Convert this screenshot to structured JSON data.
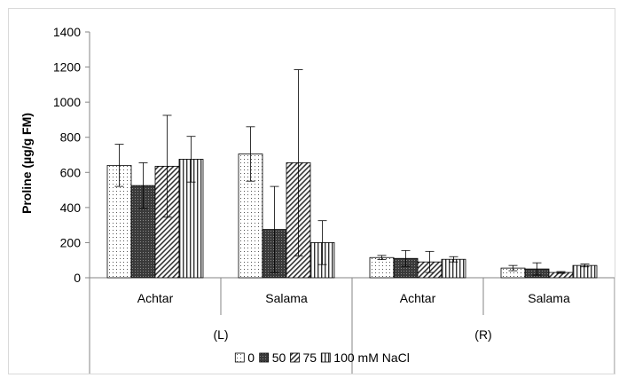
{
  "chart_data": {
    "type": "bar",
    "ylabel": "Proline (µg/g FM)",
    "xlabel": "",
    "ylim": [
      0,
      1400
    ],
    "yticks": [
      0,
      200,
      400,
      600,
      800,
      1000,
      1200,
      1400
    ],
    "grid": false,
    "legend_position": "bottom",
    "groups": [
      "(L)",
      "(R)"
    ],
    "categories": [
      "Achtar",
      "Salama",
      "Achtar",
      "Salama"
    ],
    "category_groups": [
      0,
      0,
      1,
      1
    ],
    "series": [
      {
        "name": "0",
        "values": [
          640,
          705,
          115,
          55
        ],
        "errors": [
          120,
          155,
          12,
          15
        ],
        "pattern": "dots"
      },
      {
        "name": "50",
        "values": [
          525,
          275,
          110,
          50
        ],
        "errors": [
          130,
          245,
          45,
          35
        ],
        "pattern": "dark"
      },
      {
        "name": "75",
        "values": [
          635,
          655,
          90,
          30
        ],
        "errors": [
          290,
          530,
          60,
          5
        ],
        "pattern": "diagonal"
      },
      {
        "name": "100 mM NaCl",
        "values": [
          675,
          200,
          105,
          70
        ],
        "errors": [
          130,
          125,
          15,
          8
        ],
        "pattern": "vertical"
      }
    ]
  }
}
